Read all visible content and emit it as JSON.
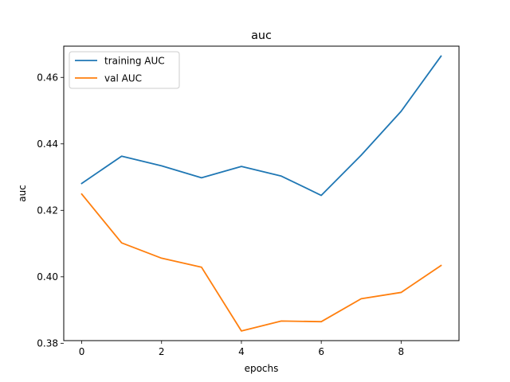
{
  "chart_data": {
    "type": "line",
    "title": "auc",
    "xlabel": "epochs",
    "ylabel": "auc",
    "xlim": [
      -0.45,
      9.45
    ],
    "ylim": [
      0.3808,
      0.4694
    ],
    "xticks": [
      0,
      2,
      4,
      6,
      8
    ],
    "xtick_labels": [
      "0",
      "2",
      "4",
      "6",
      "8"
    ],
    "yticks": [
      0.38,
      0.4,
      0.42,
      0.44,
      0.46
    ],
    "ytick_labels": [
      "0.38",
      "0.40",
      "0.42",
      "0.44",
      "0.46"
    ],
    "grid": false,
    "legend_position": "upper-left",
    "x": [
      0,
      1,
      2,
      3,
      4,
      5,
      6,
      7,
      8,
      9
    ],
    "series": [
      {
        "name": "training AUC",
        "color": "#1f77b4",
        "values": [
          0.4281,
          0.4363,
          0.4334,
          0.4298,
          0.4332,
          0.4303,
          0.4245,
          0.4366,
          0.4498,
          0.4664
        ]
      },
      {
        "name": "val AUC",
        "color": "#ff7f0e",
        "values": [
          0.4249,
          0.4102,
          0.4056,
          0.4029,
          0.3837,
          0.3867,
          0.3865,
          0.3934,
          0.3953,
          0.4034
        ]
      }
    ]
  }
}
